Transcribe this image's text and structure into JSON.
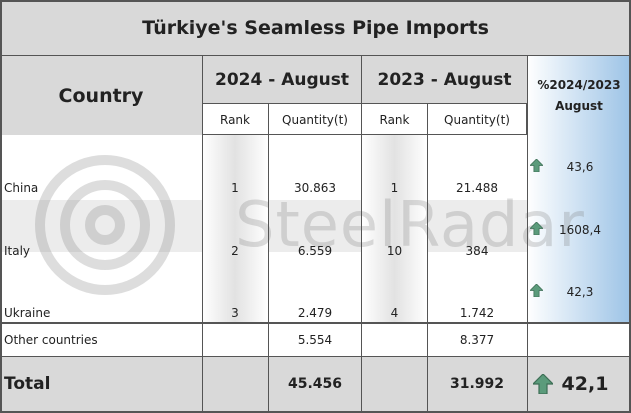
{
  "header": {
    "title": "Türkiye's Seamless Pipe Imports"
  },
  "table": {
    "columns": {
      "country": "Country",
      "group_2024": "2024 - August",
      "group_2023": "2023 - August",
      "change": [
        "%2024/2023",
        "August"
      ],
      "rank": "Rank",
      "quantity": "Quantity(t)"
    },
    "rows": [
      {
        "country": "China",
        "rank_2024": "1",
        "quantity_2024": "30.863",
        "rank_2023": "1",
        "quantity_2023": "21.488",
        "change": "43,6"
      },
      {
        "country": "Italy",
        "rank_2024": "2",
        "quantity_2024": "6.559",
        "rank_2023": "10",
        "quantity_2023": "384",
        "change": "1608,4"
      },
      {
        "country": "Ukraine",
        "rank_2024": "3",
        "quantity_2024": "2.479",
        "rank_2023": "4",
        "quantity_2023": "1.742",
        "change": "42,3"
      },
      {
        "country": "Other countries",
        "quantity_2024": "5.554",
        "quantity_2023": "8.377"
      }
    ],
    "total": {
      "label": "Total",
      "quantity_2024": "45.456",
      "quantity_2023": "31.992",
      "change": "42,1"
    }
  },
  "watermark": "SteelRadar"
}
